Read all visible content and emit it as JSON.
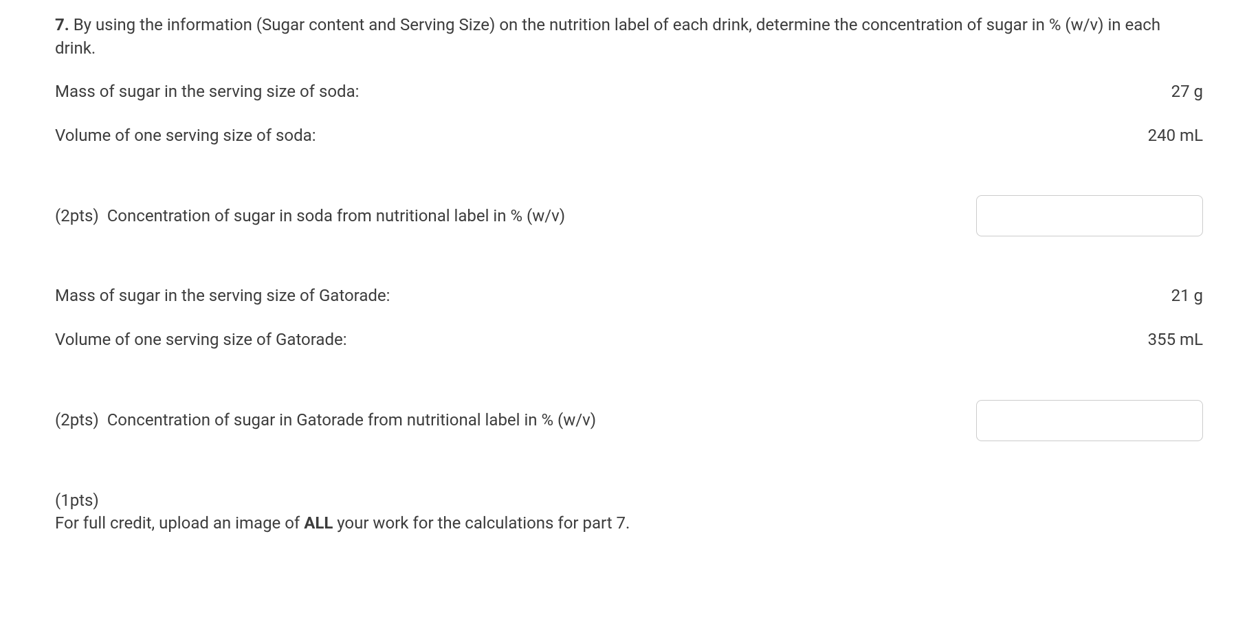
{
  "question": {
    "number": "7.",
    "text": "By using the information (Sugar content and Serving Size) on the nutrition label of each drink, determine the concentration of sugar in % (w/v) in each drink."
  },
  "soda": {
    "mass_label": "Mass of sugar in the serving size of soda:",
    "mass_value": "27 g",
    "volume_label": "Volume of one serving size of soda:",
    "volume_value": "240 mL",
    "concentration_points": "(2pts)",
    "concentration_label": "Concentration of sugar in soda from nutritional label in % (w/v)"
  },
  "gatorade": {
    "mass_label": "Mass of sugar in the serving size of Gatorade:",
    "mass_value": "21 g",
    "volume_label": "Volume of one serving size of Gatorade:",
    "volume_value": "355 mL",
    "concentration_points": "(2pts)",
    "concentration_label": "Concentration of sugar in Gatorade from nutritional label in % (w/v)"
  },
  "upload": {
    "points": "(1pts)",
    "text_before": "For full credit, upload an image of ",
    "text_bold": "ALL",
    "text_after": " your work for the calculations for part 7."
  }
}
